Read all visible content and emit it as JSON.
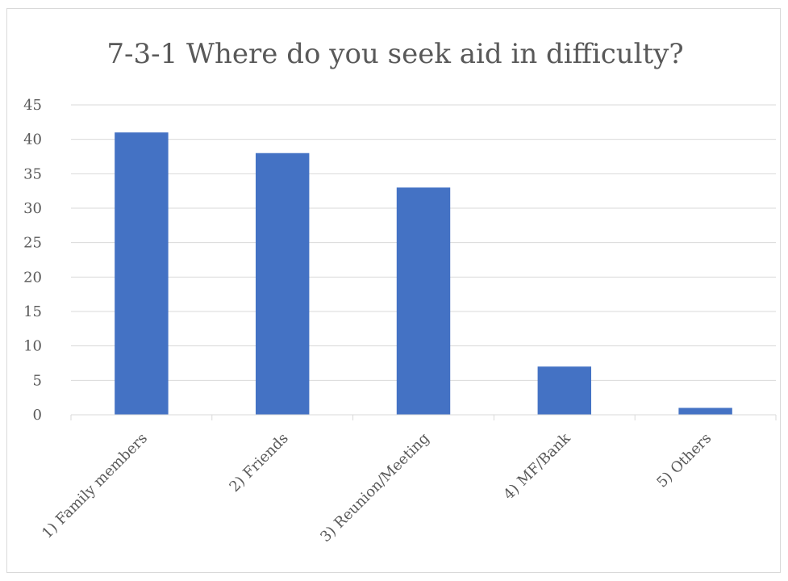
{
  "chart_data": {
    "type": "bar",
    "title": "7-3-1 Where do you seek aid in difficulty?",
    "xlabel": "",
    "ylabel": "",
    "categories": [
      "1) Family members",
      "2) Friends",
      "3) Reunion/Meeting",
      "4) MF/Bank",
      "5) Others"
    ],
    "values": [
      41,
      38,
      33,
      7,
      1
    ],
    "ylim": [
      0,
      45
    ],
    "yticks": [
      0,
      5,
      10,
      15,
      20,
      25,
      30,
      35,
      40,
      45
    ],
    "grid": true,
    "legend": "none",
    "colors": {
      "bar": "#4472c4",
      "grid": "#d9d9d9",
      "axis": "#d9d9d9",
      "text": "#595959"
    }
  }
}
